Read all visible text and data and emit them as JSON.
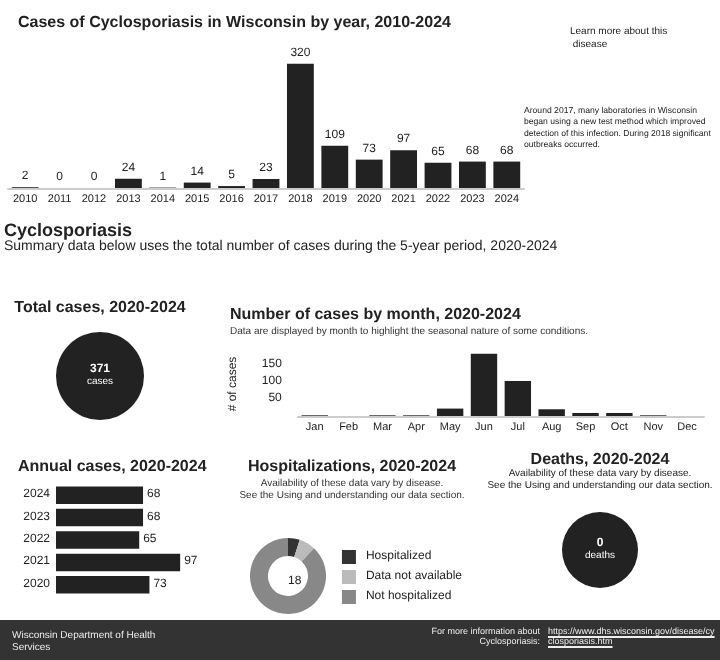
{
  "chart_data": [
    {
      "type": "bar",
      "title": "Cases of Cyclosporiasis in Wisconsin by year, 2010-2024",
      "categories": [
        "2010",
        "2011",
        "2012",
        "2013",
        "2014",
        "2015",
        "2016",
        "2017",
        "2018",
        "2019",
        "2020",
        "2021",
        "2022",
        "2023",
        "2024"
      ],
      "values": [
        2,
        0,
        0,
        24,
        1,
        14,
        5,
        23,
        320,
        109,
        73,
        97,
        65,
        68,
        68
      ],
      "color": "#222222",
      "data_labels": true,
      "annotations": [
        "Learn more about this disease",
        "Around 2017, many laboratories in Wisconsin began using a new test method which improved detection of this infection. During 2018 significant outbreaks occurred."
      ]
    },
    {
      "type": "other",
      "title": "Cyclosporiasis",
      "subtitle": "Summary data below uses the total number of cases during the 5-year period, 2020-2024"
    },
    {
      "type": "other",
      "title": "Total cases, 2020-2024",
      "annotations": [
        "371",
        "cases"
      ]
    },
    {
      "type": "bar",
      "title": "Number of cases by month, 2020-2024",
      "subtitle": "Data are displayed by month to highlight the seasonal nature of some conditions.",
      "ylabel": "# of cases",
      "categories": [
        "Jan",
        "Feb",
        "Mar",
        "Apr",
        "May",
        "Jun",
        "Jul",
        "Aug",
        "Sep",
        "Oct",
        "Nov",
        "Dec"
      ],
      "values": [
        2,
        0,
        2,
        2,
        22,
        185,
        104,
        20,
        9,
        9,
        2,
        0
      ],
      "color": "#222222",
      "ylim": [
        0,
        190
      ],
      "yticks": [
        50,
        100,
        150
      ]
    },
    {
      "type": "bar",
      "orientation": "horizontal",
      "title": "Annual cases, 2020-2024",
      "categories": [
        "2024",
        "2023",
        "2022",
        "2021",
        "2020"
      ],
      "values": [
        68,
        68,
        65,
        97,
        73
      ],
      "color": "#222222",
      "data_labels": true
    },
    {
      "type": "donut",
      "title": "Hospitalizations, 2020-2024",
      "subtitle": "Availability of these data vary by disease.\nSee the Using and understanding our data section.",
      "categories": [
        "Hospitalized",
        "Data not available",
        "Not hospitalized"
      ],
      "values": [
        5,
        7,
        88
      ],
      "colors": [
        "#333333",
        "#bbbbbb",
        "#888888"
      ],
      "legend": "right",
      "annotations": [
        "18"
      ]
    },
    {
      "type": "other",
      "title": "Deaths, 2020-2024",
      "subtitle": "Availability of these data vary by disease.\nSee the Using and understanding our data section.",
      "annotations": [
        "0",
        "deaths"
      ]
    },
    {
      "type": "other",
      "annotations": [
        "Wisconsin Department of Health Services",
        "For more information about Cyclosporiasis:",
        "https://www.dhs.wisconsin.gov/disease/cyclosporiasis.htm"
      ]
    }
  ]
}
